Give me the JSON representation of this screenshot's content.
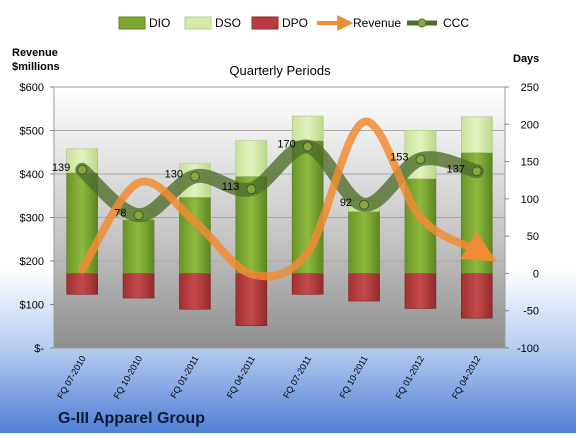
{
  "chart_data": {
    "type": "bar",
    "title": "Quarterly Periods",
    "company": "G-III Apparel Group",
    "left_axis_title": "Revenue\n$millions",
    "right_axis_title": "Days",
    "left_ticks": [
      "$600",
      "$500",
      "$400",
      "$300",
      "$200",
      "$100",
      "$-"
    ],
    "right_ticks": [
      "250",
      "200",
      "150",
      "100",
      "50",
      "0",
      "-50",
      "-100"
    ],
    "left_range": [
      0,
      600
    ],
    "right_range": [
      -100,
      250
    ],
    "categories": [
      "FQ 07-2010",
      "FQ 10-2010",
      "FQ 01-2011",
      "FQ 04-2011",
      "FQ 07-2011",
      "FQ 10-2011",
      "FQ 01-2012",
      "FQ 04-2012"
    ],
    "legend": [
      "DIO",
      "DSO",
      "DPO",
      "Revenue",
      "CCC"
    ],
    "series": [
      {
        "name": "DIO",
        "axis": "days",
        "values": [
          135,
          72,
          102,
          130,
          178,
          83,
          127,
          162
        ]
      },
      {
        "name": "DSO",
        "axis": "days",
        "values": [
          32,
          15,
          45,
          48,
          33,
          15,
          65,
          48
        ]
      },
      {
        "name": "DPO",
        "axis": "days",
        "values": [
          -28,
          -33,
          -48,
          -70,
          -28,
          -37,
          -47,
          -60
        ]
      },
      {
        "name": "Revenue",
        "axis": "revenue",
        "values": [
          180,
          380,
          290,
          170,
          220,
          520,
          300,
          225
        ]
      },
      {
        "name": "CCC",
        "axis": "days",
        "values": [
          139,
          78,
          130,
          113,
          170,
          92,
          153,
          137
        ]
      }
    ],
    "ccc_labels": [
      "139",
      "78",
      "130",
      "113",
      "170",
      "92",
      "153",
      "137"
    ],
    "colors": {
      "DIO": "#7da633",
      "DSO": "#d6ebaa",
      "DPO": "#b83b3f",
      "Revenue": "#f08c33",
      "CCC": "#4e6b2a"
    }
  }
}
